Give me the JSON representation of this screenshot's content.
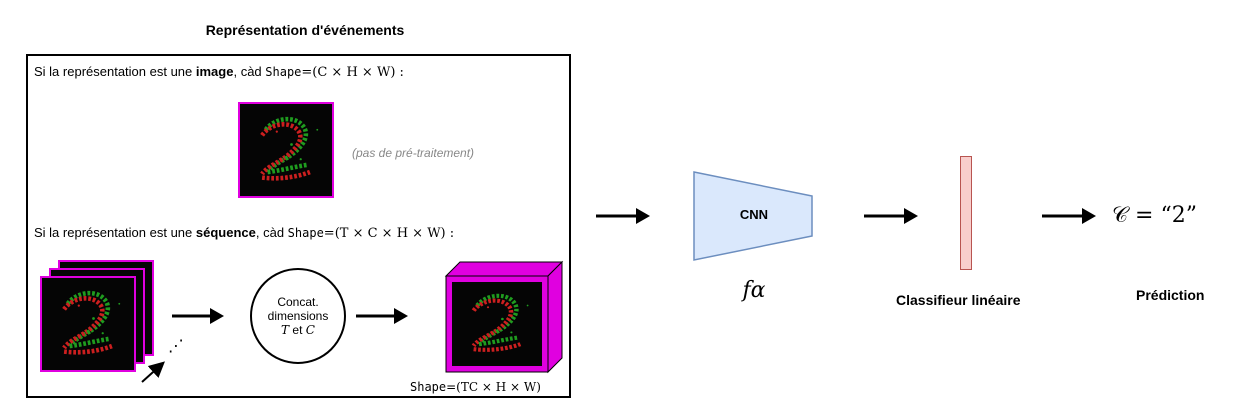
{
  "title": "Représentation d'événements",
  "image_case": {
    "prefix": "Si la représentation est une ",
    "keyword": "image",
    "middle": ", càd ",
    "shape_word": "Shape",
    "shape_formula": "=(C × H × W) :"
  },
  "no_preprocessing": "(pas de pré-traitement)",
  "sequence_case": {
    "prefix": "Si la représentation est une ",
    "keyword": "séquence",
    "middle": ", càd ",
    "shape_word": "Shape",
    "shape_formula": "=(T × C × H × W) :"
  },
  "concat": {
    "line1": "Concat.",
    "line2": "dimensions",
    "var_t": "T",
    "conj": "et",
    "var_c": "C"
  },
  "output_shape": {
    "shape_word": "Shape",
    "shape_formula": "=(TC × H × W)"
  },
  "ellipsis": "⋰",
  "cnn": {
    "label": "CNN",
    "function": "fα"
  },
  "classifier": {
    "label": "Classifieur linéaire"
  },
  "prediction": {
    "label": "Prédiction",
    "formula": "𝒞  =  “2”"
  },
  "colors": {
    "magenta": "#e000e0",
    "cnn_fill": "#dae8fc",
    "cnn_stroke": "#6c8ebf",
    "classifier_fill": "#f8cecc",
    "classifier_stroke": "#b85450",
    "event_red": "#cc1f1f",
    "event_green": "#1f9c1f"
  }
}
